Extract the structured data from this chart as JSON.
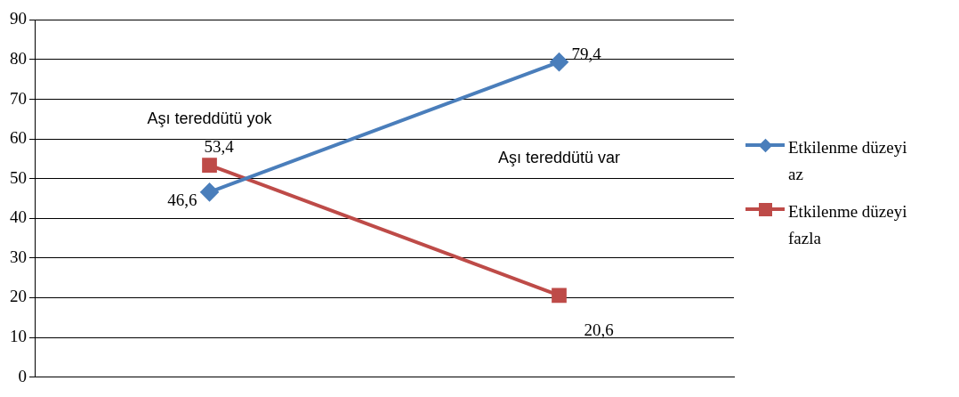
{
  "chart_data": {
    "type": "line",
    "categories": [
      "Aşı tereddütü yok",
      "Aşı tereddütü var"
    ],
    "series": [
      {
        "name": "Etkilenme düzeyi az",
        "color": "#4a7ebb",
        "values": [
          46.6,
          79.4
        ],
        "value_labels": [
          "46,6",
          "79,4"
        ],
        "marker": "diamond"
      },
      {
        "name": "Etkilenme düzeyi fazla",
        "color": "#be4b48",
        "values": [
          53.4,
          20.6
        ],
        "value_labels": [
          "53,4",
          "20,6"
        ],
        "marker": "square"
      }
    ],
    "ylim": [
      0,
      90
    ],
    "yticks": [
      0,
      10,
      20,
      30,
      40,
      50,
      60,
      70,
      80,
      90
    ],
    "grid": "y",
    "legend": "right",
    "tick_labels": "y",
    "line_style": "solid"
  }
}
